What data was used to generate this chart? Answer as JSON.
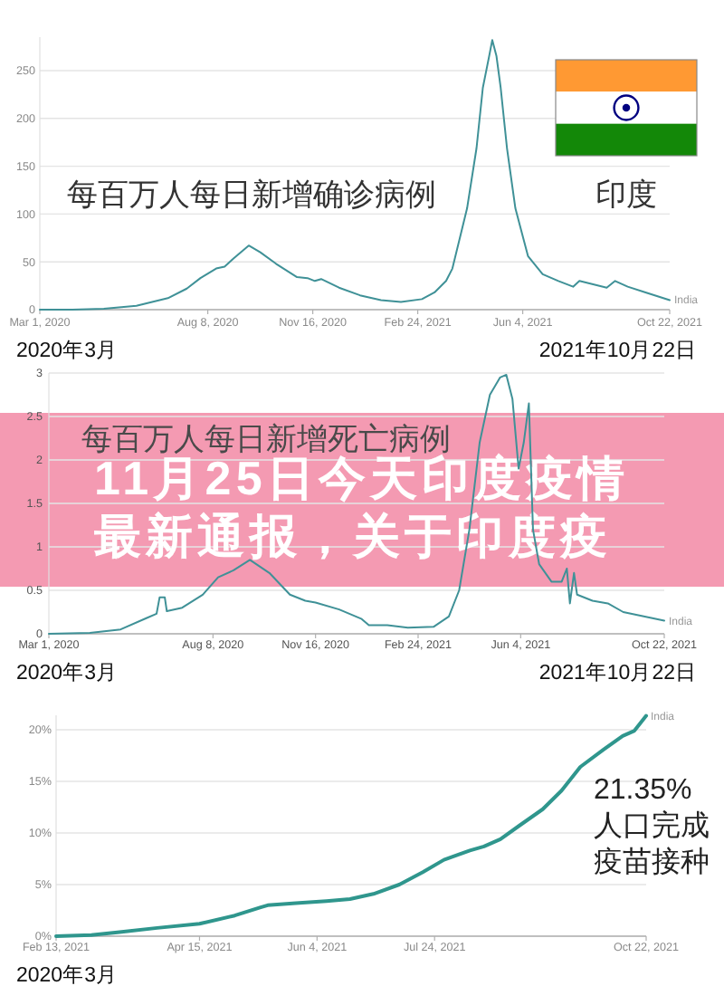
{
  "chart_data": [
    {
      "type": "line",
      "title": "每百万人每日新增确诊病例",
      "annotations": [
        "印度",
        "2020年3月",
        "2021年10月22日"
      ],
      "series": [
        {
          "name": "India",
          "color": "#3f9197",
          "x": [
            "2020-03-01",
            "2020-04-01",
            "2020-05-01",
            "2020-06-01",
            "2020-07-01",
            "2020-07-19",
            "2020-08-01",
            "2020-08-16",
            "2020-08-24",
            "2020-09-02",
            "2020-09-16",
            "2020-09-27",
            "2020-10-12",
            "2020-11-01",
            "2020-11-11",
            "2020-11-18",
            "2020-11-24",
            "2020-12-11",
            "2020-12-31",
            "2021-01-20",
            "2021-02-08",
            "2021-02-28",
            "2021-03-12",
            "2021-03-23",
            "2021-03-29",
            "2021-04-12",
            "2021-04-21",
            "2021-04-27",
            "2021-05-03",
            "2021-05-06",
            "2021-05-10",
            "2021-05-14",
            "2021-05-20",
            "2021-05-28",
            "2021-06-09",
            "2021-06-23",
            "2021-07-08",
            "2021-07-22",
            "2021-07-28",
            "2021-08-23",
            "2021-08-31",
            "2021-09-12",
            "2021-09-29",
            "2021-10-22"
          ],
          "values": [
            0,
            0,
            1,
            4,
            12,
            22,
            33,
            43,
            45,
            54,
            67,
            60,
            48,
            34,
            33,
            30,
            32,
            23,
            15,
            10,
            8,
            11,
            18,
            30,
            43,
            106,
            169,
            232,
            265,
            282,
            265,
            232,
            169,
            106,
            56,
            37,
            30,
            24,
            30,
            23,
            30,
            24,
            18,
            10
          ]
        }
      ],
      "xlim": [
        "2020-03-01",
        "2021-10-22"
      ],
      "xticks": [
        {
          "value": "2020-03-01",
          "label": "Mar 1, 2020"
        },
        {
          "value": "2020-08-08",
          "label": "Aug 8, 2020"
        },
        {
          "value": "2020-11-16",
          "label": "Nov 16, 2020"
        },
        {
          "value": "2021-02-24",
          "label": "Feb 24, 2021"
        },
        {
          "value": "2021-06-04",
          "label": "Jun 4, 2021"
        },
        {
          "value": "2021-10-22",
          "label": "Oct 22, 2021"
        }
      ],
      "ylim": [
        0,
        285
      ],
      "yticks": [
        0,
        50,
        100,
        150,
        200,
        250
      ],
      "grid": "y"
    },
    {
      "type": "line",
      "title": "每百万人每日新增死亡病例",
      "annotations": [
        "11月25日今天印度疫情最新通报，关于印度疫",
        "2020年3月",
        "2021年10月22日"
      ],
      "series": [
        {
          "name": "India",
          "color": "#3f9197",
          "x": [
            "2020-03-01",
            "2020-04-10",
            "2020-05-10",
            "2020-06-04",
            "2020-06-14",
            "2020-06-17",
            "2020-06-22",
            "2020-06-24",
            "2020-07-09",
            "2020-07-29",
            "2020-08-13",
            "2020-08-28",
            "2020-09-13",
            "2020-10-02",
            "2020-10-22",
            "2020-11-06",
            "2020-11-16",
            "2020-12-09",
            "2020-12-31",
            "2021-01-07",
            "2021-01-25",
            "2021-02-14",
            "2021-03-11",
            "2021-03-26",
            "2021-04-05",
            "2021-04-15",
            "2021-04-25",
            "2021-05-05",
            "2021-05-15",
            "2021-05-21",
            "2021-05-27",
            "2021-06-02",
            "2021-06-07",
            "2021-06-12",
            "2021-06-16",
            "2021-06-22",
            "2021-07-04",
            "2021-07-14",
            "2021-07-19",
            "2021-07-22",
            "2021-07-26",
            "2021-07-29",
            "2021-08-13",
            "2021-08-28",
            "2021-09-12",
            "2021-10-02",
            "2021-10-22"
          ],
          "values": [
            0,
            0.01,
            0.05,
            0.18,
            0.23,
            0.42,
            0.42,
            0.26,
            0.3,
            0.45,
            0.65,
            0.73,
            0.85,
            0.7,
            0.45,
            0.38,
            0.36,
            0.28,
            0.17,
            0.1,
            0.1,
            0.07,
            0.08,
            0.2,
            0.5,
            1.2,
            2.2,
            2.75,
            2.95,
            2.98,
            2.7,
            1.9,
            2.2,
            2.65,
            1.2,
            0.8,
            0.6,
            0.6,
            0.75,
            0.35,
            0.7,
            0.45,
            0.38,
            0.35,
            0.25,
            0.2,
            0.15
          ]
        }
      ],
      "xlim": [
        "2020-03-01",
        "2021-10-22"
      ],
      "xticks": [
        {
          "value": "2020-03-01",
          "label": "Mar 1, 2020"
        },
        {
          "value": "2020-08-08",
          "label": "Aug 8, 2020"
        },
        {
          "value": "2020-11-16",
          "label": "Nov 16, 2020"
        },
        {
          "value": "2021-02-24",
          "label": "Feb 24, 2021"
        },
        {
          "value": "2021-06-04",
          "label": "Jun 4, 2021"
        },
        {
          "value": "2021-10-22",
          "label": "Oct 22, 2021"
        }
      ],
      "ylim": [
        0,
        3
      ],
      "yticks": [
        0,
        0.5,
        1,
        1.5,
        2,
        2.5,
        3
      ],
      "grid": "y"
    },
    {
      "type": "line",
      "annotations": [
        "21.35%",
        "人口完成疫苗接种",
        "2020年3月"
      ],
      "series": [
        {
          "name": "India",
          "color": "#2f968d",
          "x": [
            "2021-02-13",
            "2021-02-28",
            "2021-03-12",
            "2021-03-28",
            "2021-04-15",
            "2021-04-30",
            "2021-05-11",
            "2021-05-14",
            "2021-05-26",
            "2021-06-08",
            "2021-06-18",
            "2021-06-28",
            "2021-07-09",
            "2021-07-19",
            "2021-07-28",
            "2021-08-08",
            "2021-08-14",
            "2021-08-21",
            "2021-08-29",
            "2021-09-08",
            "2021-09-16",
            "2021-09-24",
            "2021-10-04",
            "2021-10-12",
            "2021-10-17",
            "2021-10-22"
          ],
          "values": [
            0,
            0.1,
            0.4,
            0.8,
            1.2,
            2.0,
            2.8,
            3.0,
            3.2,
            3.4,
            3.6,
            4.1,
            5.0,
            6.2,
            7.4,
            8.3,
            8.7,
            9.4,
            10.7,
            12.3,
            14.1,
            16.4,
            18.1,
            19.4,
            19.9,
            21.35
          ]
        }
      ],
      "xlim": [
        "2021-02-13",
        "2021-10-22"
      ],
      "xticks": [
        {
          "value": "2021-02-13",
          "label": "Feb 13, 2021"
        },
        {
          "value": "2021-04-15",
          "label": "Apr 15, 2021"
        },
        {
          "value": "2021-06-04",
          "label": "Jun 4, 2021"
        },
        {
          "value": "2021-07-24",
          "label": "Jul 24, 2021"
        },
        {
          "value": "2021-10-22",
          "label": "Oct 22, 2021"
        }
      ],
      "ylim": [
        0,
        21.4
      ],
      "yticks": [
        {
          "value": 0,
          "label": "0%"
        },
        {
          "value": 5,
          "label": "5%"
        },
        {
          "value": 10,
          "label": "10%"
        },
        {
          "value": 15,
          "label": "15%"
        },
        {
          "value": 20,
          "label": "20%"
        }
      ],
      "grid": "y"
    }
  ]
}
